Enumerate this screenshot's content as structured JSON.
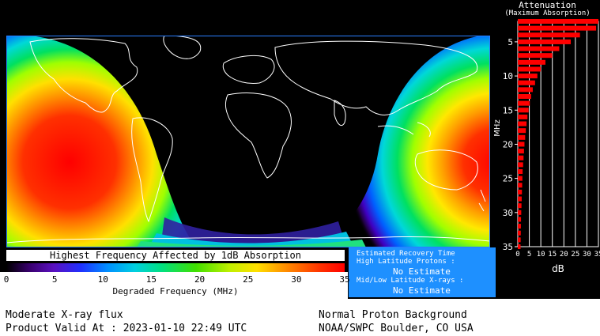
{
  "attenuation": {
    "title": "Attenuation",
    "subtitle": "(Maximum Absorption)",
    "y_label": "MHz",
    "x_label": "dB",
    "y_ticks": [
      "5",
      "10",
      "15",
      "20",
      "25",
      "30",
      "35"
    ],
    "x_ticks": [
      "0",
      "5",
      "10",
      "15",
      "20",
      "25",
      "30",
      "35"
    ],
    "bar_color": "#ff0000"
  },
  "chart_data": {
    "type": "bar",
    "orientation": "horizontal",
    "title": "Attenuation",
    "xlabel": "dB",
    "ylabel": "MHz",
    "xlim": [
      0,
      35
    ],
    "ylim": [
      2,
      35
    ],
    "frequencies_mhz": [
      2,
      3,
      4,
      5,
      6,
      7,
      8,
      9,
      10,
      11,
      12,
      13,
      14,
      15,
      16,
      17,
      18,
      19,
      20,
      21,
      22,
      23,
      24,
      25,
      26,
      27,
      28,
      29,
      30,
      31,
      32,
      33,
      34,
      35
    ],
    "values_db": [
      35,
      34,
      27,
      23,
      18,
      15,
      12,
      10,
      8.5,
      7.5,
      6.5,
      5.8,
      5.2,
      4.7,
      4.2,
      3.8,
      3.5,
      3.2,
      2.9,
      2.7,
      2.5,
      2.3,
      2.1,
      2.0,
      1.9,
      1.8,
      1.7,
      1.6,
      1.5,
      1.4,
      1.35,
      1.3,
      1.25,
      1.2
    ]
  },
  "colorbar": {
    "title": "Highest Frequency Affected by 1dB Absorption",
    "caption": "Degraded Frequency (MHz)",
    "ticks": [
      "0",
      "5",
      "10",
      "15",
      "20",
      "25",
      "30",
      "35"
    ]
  },
  "recovery": {
    "title": "Estimated Recovery Time",
    "line1": "High Latitude Protons :",
    "value1": "No Estimate",
    "line2": "Mid/Low Latitude X-rays :",
    "value2": "No Estimate"
  },
  "footer": {
    "flux": "Moderate X-ray flux",
    "valid": "Product Valid At : 2023-01-10 22:49 UTC",
    "proton": "Normal Proton Background",
    "source": "NOAA/SWPC Boulder, CO USA"
  }
}
